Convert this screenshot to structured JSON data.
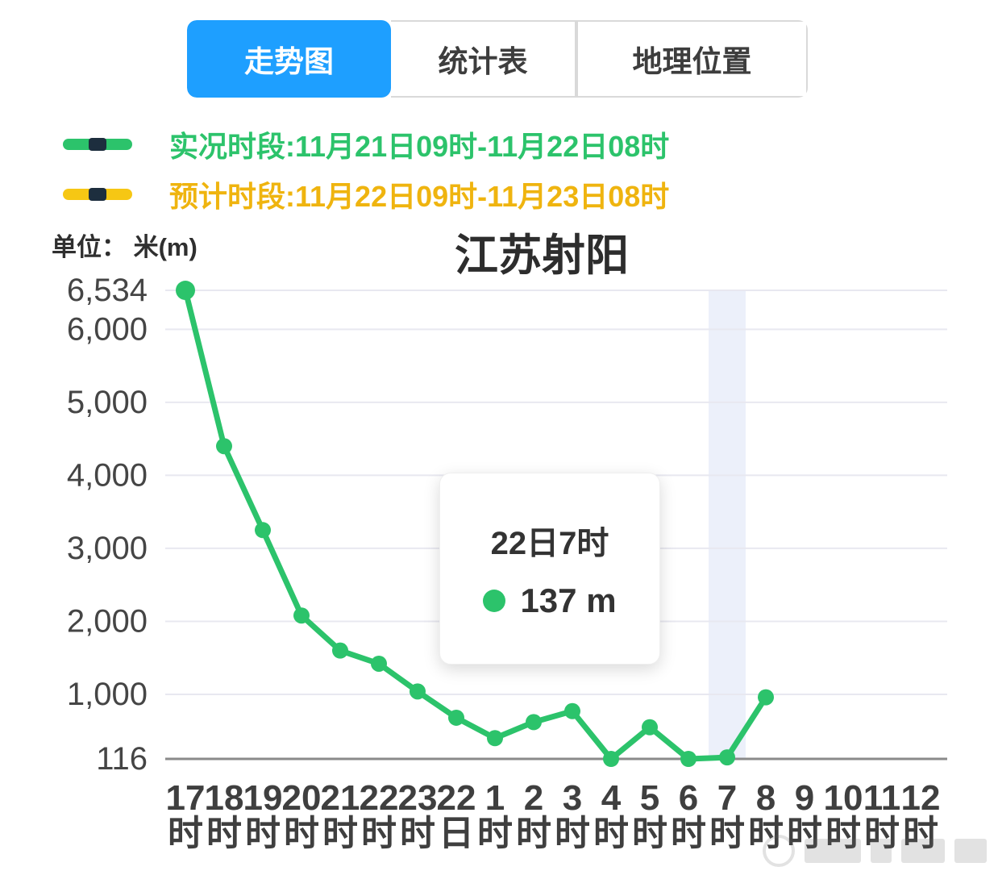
{
  "tabs": [
    {
      "label": "走势图",
      "active": true
    },
    {
      "label": "统计表",
      "active": false
    },
    {
      "label": "地理位置",
      "active": false
    }
  ],
  "legend": {
    "items": [
      {
        "label": "实况时段:11月21日09时-11月22日08时",
        "color": "#2CC36B"
      },
      {
        "label": "预计时段:11月22日09时-11月23日08时",
        "color": "#F6C714"
      }
    ]
  },
  "unit_label": "单位： 米(m)",
  "tooltip": {
    "title": "22日7时",
    "value": "137 m",
    "dot_color": "#2CC36B"
  },
  "colors": {
    "active_tab_blue": "#1E9FFF",
    "actual_green": "#2CC36B",
    "forecast_yellow": "#F6C714",
    "legend_yellow_text": "#EFB40F",
    "gridline": "#E8E8F0",
    "highlight_band": "#ECF0FA",
    "axis_text": "#3F3F3F"
  },
  "chart_data": {
    "type": "line",
    "title": "江苏射阳",
    "ylabel": "米(m)",
    "ylim": [
      116,
      6700
    ],
    "grid": true,
    "legend_position": "top-left",
    "highlight_index": 14,
    "highlight_color": "#ECF0FA",
    "yticks": [
      {
        "value": 6534,
        "label": "6,534"
      },
      {
        "value": 6000,
        "label": "6,000"
      },
      {
        "value": 5000,
        "label": "5,000"
      },
      {
        "value": 4000,
        "label": "4,000"
      },
      {
        "value": 3000,
        "label": "3,000"
      },
      {
        "value": 2000,
        "label": "2,000"
      },
      {
        "value": 1000,
        "label": "1,000"
      },
      {
        "value": 116,
        "label": "116"
      }
    ],
    "categories": [
      {
        "num": "17",
        "suffix": "时"
      },
      {
        "num": "18",
        "suffix": "时"
      },
      {
        "num": "19",
        "suffix": "时"
      },
      {
        "num": "20",
        "suffix": "时"
      },
      {
        "num": "21",
        "suffix": "时"
      },
      {
        "num": "22",
        "suffix": "时"
      },
      {
        "num": "23",
        "suffix": "时"
      },
      {
        "num": "22",
        "suffix": "日"
      },
      {
        "num": "1",
        "suffix": "时"
      },
      {
        "num": "2",
        "suffix": "时"
      },
      {
        "num": "3",
        "suffix": "时"
      },
      {
        "num": "4",
        "suffix": "时"
      },
      {
        "num": "5",
        "suffix": "时"
      },
      {
        "num": "6",
        "suffix": "时"
      },
      {
        "num": "7",
        "suffix": "时"
      },
      {
        "num": "8",
        "suffix": "时"
      },
      {
        "num": "9",
        "suffix": "时"
      },
      {
        "num": "10",
        "suffix": "时"
      },
      {
        "num": "11",
        "suffix": "时"
      },
      {
        "num": "12",
        "suffix": "时"
      }
    ],
    "series": [
      {
        "name": "实况时段",
        "color": "#2CC36B",
        "values": [
          6534,
          4400,
          3250,
          2080,
          1600,
          1420,
          1040,
          680,
          400,
          620,
          770,
          116,
          550,
          116,
          137,
          960,
          null,
          null,
          null,
          null
        ]
      }
    ]
  }
}
